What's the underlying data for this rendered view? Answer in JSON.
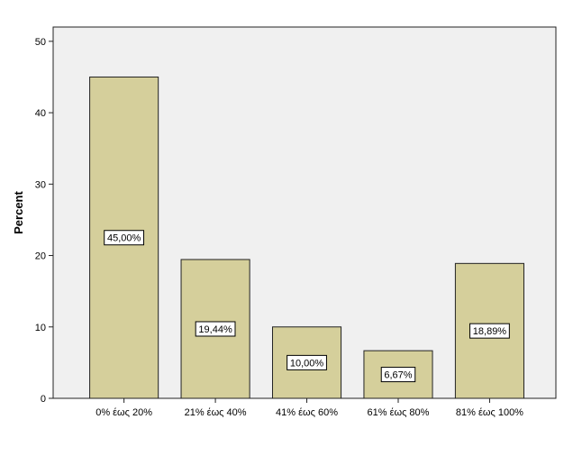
{
  "chart_data": {
    "type": "bar",
    "title": "",
    "xlabel": "",
    "ylabel": "Percent",
    "ylim": [
      0,
      52
    ],
    "yticks": [
      0,
      10,
      20,
      30,
      40,
      50
    ],
    "grid": false,
    "categories": [
      "0% έως 20%",
      "21%  έως 40%",
      "41% έως 60%",
      "61% έως 80%",
      "81% έως 100%"
    ],
    "values": [
      45.0,
      19.44,
      10.0,
      6.67,
      18.89
    ],
    "data_labels": [
      "45,00%",
      "19,44%",
      "10,00%",
      "6,67%",
      "18,89%"
    ]
  },
  "colors": {
    "plot_background": "#f0f0f0",
    "bar_fill": "#d5cf9b",
    "bar_stroke": "#222222",
    "label_box_fill": "#ffffff"
  }
}
